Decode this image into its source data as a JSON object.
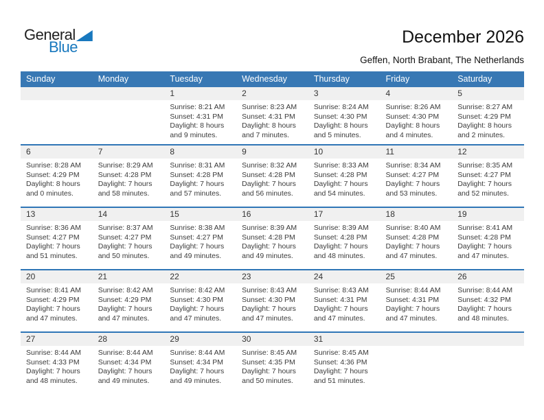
{
  "logo": {
    "part1": "General",
    "part2": "Blue"
  },
  "header": {
    "title": "December 2026",
    "subtitle": "Geffen, North Brabant, The Netherlands"
  },
  "colors": {
    "header_bg": "#3878b4",
    "row_line": "#2e75b6",
    "band_bg": "#f0f0f0",
    "logo_blue": "#1878be"
  },
  "calendar": {
    "weekdays": [
      "Sunday",
      "Monday",
      "Tuesday",
      "Wednesday",
      "Thursday",
      "Friday",
      "Saturday"
    ],
    "weeks": [
      [
        null,
        null,
        {
          "day": "1",
          "lines": [
            "Sunrise: 8:21 AM",
            "Sunset: 4:31 PM",
            "Daylight: 8 hours",
            "and 9 minutes."
          ]
        },
        {
          "day": "2",
          "lines": [
            "Sunrise: 8:23 AM",
            "Sunset: 4:31 PM",
            "Daylight: 8 hours",
            "and 7 minutes."
          ]
        },
        {
          "day": "3",
          "lines": [
            "Sunrise: 8:24 AM",
            "Sunset: 4:30 PM",
            "Daylight: 8 hours",
            "and 5 minutes."
          ]
        },
        {
          "day": "4",
          "lines": [
            "Sunrise: 8:26 AM",
            "Sunset: 4:30 PM",
            "Daylight: 8 hours",
            "and 4 minutes."
          ]
        },
        {
          "day": "5",
          "lines": [
            "Sunrise: 8:27 AM",
            "Sunset: 4:29 PM",
            "Daylight: 8 hours",
            "and 2 minutes."
          ]
        }
      ],
      [
        {
          "day": "6",
          "lines": [
            "Sunrise: 8:28 AM",
            "Sunset: 4:29 PM",
            "Daylight: 8 hours",
            "and 0 minutes."
          ]
        },
        {
          "day": "7",
          "lines": [
            "Sunrise: 8:29 AM",
            "Sunset: 4:28 PM",
            "Daylight: 7 hours",
            "and 58 minutes."
          ]
        },
        {
          "day": "8",
          "lines": [
            "Sunrise: 8:31 AM",
            "Sunset: 4:28 PM",
            "Daylight: 7 hours",
            "and 57 minutes."
          ]
        },
        {
          "day": "9",
          "lines": [
            "Sunrise: 8:32 AM",
            "Sunset: 4:28 PM",
            "Daylight: 7 hours",
            "and 56 minutes."
          ]
        },
        {
          "day": "10",
          "lines": [
            "Sunrise: 8:33 AM",
            "Sunset: 4:28 PM",
            "Daylight: 7 hours",
            "and 54 minutes."
          ]
        },
        {
          "day": "11",
          "lines": [
            "Sunrise: 8:34 AM",
            "Sunset: 4:27 PM",
            "Daylight: 7 hours",
            "and 53 minutes."
          ]
        },
        {
          "day": "12",
          "lines": [
            "Sunrise: 8:35 AM",
            "Sunset: 4:27 PM",
            "Daylight: 7 hours",
            "and 52 minutes."
          ]
        }
      ],
      [
        {
          "day": "13",
          "lines": [
            "Sunrise: 8:36 AM",
            "Sunset: 4:27 PM",
            "Daylight: 7 hours",
            "and 51 minutes."
          ]
        },
        {
          "day": "14",
          "lines": [
            "Sunrise: 8:37 AM",
            "Sunset: 4:27 PM",
            "Daylight: 7 hours",
            "and 50 minutes."
          ]
        },
        {
          "day": "15",
          "lines": [
            "Sunrise: 8:38 AM",
            "Sunset: 4:27 PM",
            "Daylight: 7 hours",
            "and 49 minutes."
          ]
        },
        {
          "day": "16",
          "lines": [
            "Sunrise: 8:39 AM",
            "Sunset: 4:28 PM",
            "Daylight: 7 hours",
            "and 49 minutes."
          ]
        },
        {
          "day": "17",
          "lines": [
            "Sunrise: 8:39 AM",
            "Sunset: 4:28 PM",
            "Daylight: 7 hours",
            "and 48 minutes."
          ]
        },
        {
          "day": "18",
          "lines": [
            "Sunrise: 8:40 AM",
            "Sunset: 4:28 PM",
            "Daylight: 7 hours",
            "and 47 minutes."
          ]
        },
        {
          "day": "19",
          "lines": [
            "Sunrise: 8:41 AM",
            "Sunset: 4:28 PM",
            "Daylight: 7 hours",
            "and 47 minutes."
          ]
        }
      ],
      [
        {
          "day": "20",
          "lines": [
            "Sunrise: 8:41 AM",
            "Sunset: 4:29 PM",
            "Daylight: 7 hours",
            "and 47 minutes."
          ]
        },
        {
          "day": "21",
          "lines": [
            "Sunrise: 8:42 AM",
            "Sunset: 4:29 PM",
            "Daylight: 7 hours",
            "and 47 minutes."
          ]
        },
        {
          "day": "22",
          "lines": [
            "Sunrise: 8:42 AM",
            "Sunset: 4:30 PM",
            "Daylight: 7 hours",
            "and 47 minutes."
          ]
        },
        {
          "day": "23",
          "lines": [
            "Sunrise: 8:43 AM",
            "Sunset: 4:30 PM",
            "Daylight: 7 hours",
            "and 47 minutes."
          ]
        },
        {
          "day": "24",
          "lines": [
            "Sunrise: 8:43 AM",
            "Sunset: 4:31 PM",
            "Daylight: 7 hours",
            "and 47 minutes."
          ]
        },
        {
          "day": "25",
          "lines": [
            "Sunrise: 8:44 AM",
            "Sunset: 4:31 PM",
            "Daylight: 7 hours",
            "and 47 minutes."
          ]
        },
        {
          "day": "26",
          "lines": [
            "Sunrise: 8:44 AM",
            "Sunset: 4:32 PM",
            "Daylight: 7 hours",
            "and 48 minutes."
          ]
        }
      ],
      [
        {
          "day": "27",
          "lines": [
            "Sunrise: 8:44 AM",
            "Sunset: 4:33 PM",
            "Daylight: 7 hours",
            "and 48 minutes."
          ]
        },
        {
          "day": "28",
          "lines": [
            "Sunrise: 8:44 AM",
            "Sunset: 4:34 PM",
            "Daylight: 7 hours",
            "and 49 minutes."
          ]
        },
        {
          "day": "29",
          "lines": [
            "Sunrise: 8:44 AM",
            "Sunset: 4:34 PM",
            "Daylight: 7 hours",
            "and 49 minutes."
          ]
        },
        {
          "day": "30",
          "lines": [
            "Sunrise: 8:45 AM",
            "Sunset: 4:35 PM",
            "Daylight: 7 hours",
            "and 50 minutes."
          ]
        },
        {
          "day": "31",
          "lines": [
            "Sunrise: 8:45 AM",
            "Sunset: 4:36 PM",
            "Daylight: 7 hours",
            "and 51 minutes."
          ]
        },
        null,
        null
      ]
    ]
  }
}
